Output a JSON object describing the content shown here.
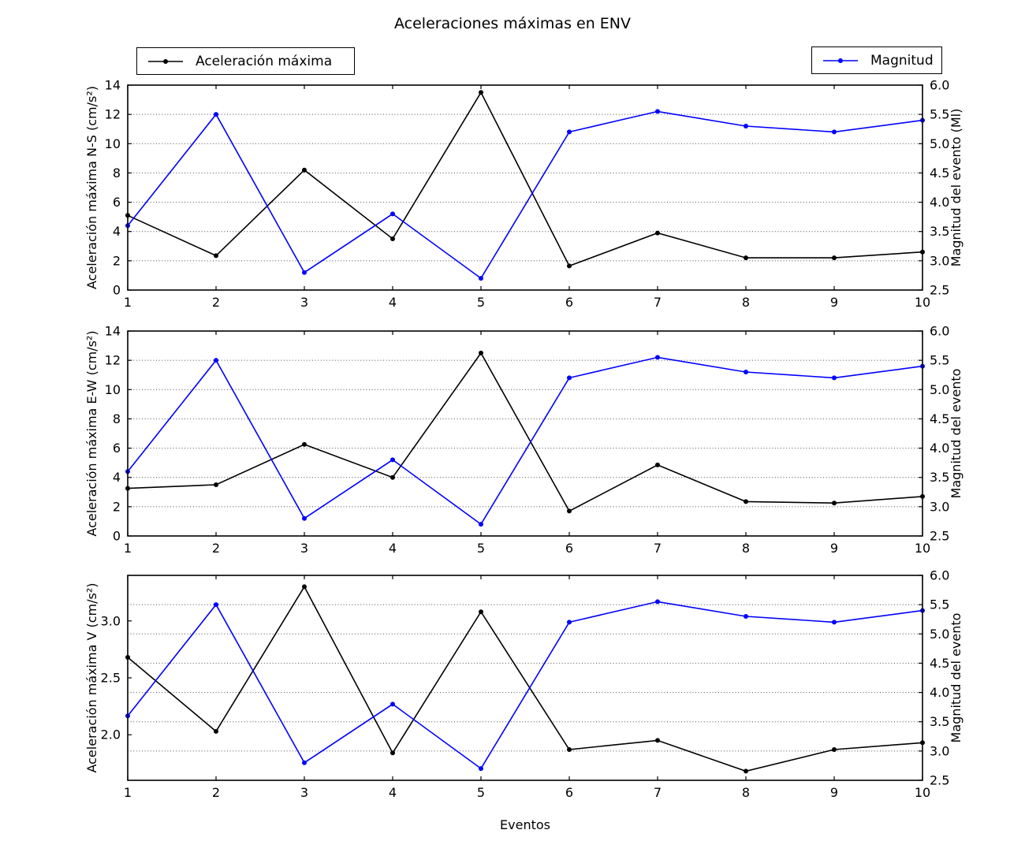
{
  "title": "Aceleraciones máximas en ENV",
  "xlabel": "Eventos",
  "legends": [
    {
      "key": "aceleracion-maxima",
      "label": "Aceleración máxima",
      "color": "#000000"
    },
    {
      "key": "magnitud",
      "label": "Magnitud",
      "color": "#0000ff"
    }
  ],
  "chart_data": [
    {
      "id": "ns",
      "type": "line",
      "x": [
        1,
        2,
        3,
        4,
        5,
        6,
        7,
        8,
        9,
        10
      ],
      "xlim": [
        1,
        10
      ],
      "xtick_labels": [
        "1",
        "2",
        "3",
        "4",
        "5",
        "6",
        "7",
        "8",
        "9",
        "10"
      ],
      "ylabel_left": "Aceleración máxima N-S (cm/s²)",
      "ylabel_right": "Magnitud del evento (Ml)",
      "ylim_left": [
        0,
        14
      ],
      "ylim_right": [
        2.5,
        6.0
      ],
      "yticks_left": {
        "values": [
          0,
          2,
          4,
          6,
          8,
          10,
          12,
          14
        ],
        "labels": [
          "0",
          "2",
          "4",
          "6",
          "8",
          "10",
          "12",
          "14"
        ]
      },
      "yticks_right": {
        "values": [
          2.5,
          3.0,
          3.5,
          4.0,
          4.5,
          5.0,
          5.5,
          6.0
        ],
        "labels": [
          "2.5",
          "3.0",
          "3.5",
          "4.0",
          "4.5",
          "5.0",
          "5.5",
          "6.0"
        ]
      },
      "grid": {
        "axis": "right",
        "values": [
          3.0,
          3.5,
          4.0,
          4.5,
          5.0,
          5.5
        ],
        "style": "dotted"
      },
      "series": [
        {
          "key": "aceleracion-maxima",
          "name": "Aceleración máxima",
          "axis": "left",
          "color": "#000000",
          "marker": "circle",
          "values": [
            5.1,
            2.35,
            8.2,
            3.5,
            13.5,
            1.65,
            3.9,
            2.2,
            2.2,
            2.6
          ]
        },
        {
          "key": "magnitud",
          "name": "Magnitud",
          "axis": "right",
          "color": "#0000ff",
          "marker": "circle",
          "values": [
            3.6,
            5.5,
            2.8,
            3.8,
            2.7,
            5.2,
            5.55,
            5.3,
            5.2,
            5.4
          ]
        }
      ]
    },
    {
      "id": "ew",
      "type": "line",
      "x": [
        1,
        2,
        3,
        4,
        5,
        6,
        7,
        8,
        9,
        10
      ],
      "xlim": [
        1,
        10
      ],
      "xtick_labels": [
        "1",
        "2",
        "3",
        "4",
        "5",
        "6",
        "7",
        "8",
        "9",
        "10"
      ],
      "ylabel_left": "Aceleración máxima E-W (cm/s²)",
      "ylabel_right": "Magnitud del evento",
      "ylim_left": [
        0,
        14
      ],
      "ylim_right": [
        2.5,
        6.0
      ],
      "yticks_left": {
        "values": [
          0,
          2,
          4,
          6,
          8,
          10,
          12,
          14
        ],
        "labels": [
          "0",
          "2",
          "4",
          "6",
          "8",
          "10",
          "12",
          "14"
        ]
      },
      "yticks_right": {
        "values": [
          2.5,
          3.0,
          3.5,
          4.0,
          4.5,
          5.0,
          5.5,
          6.0
        ],
        "labels": [
          "2.5",
          "3.0",
          "3.5",
          "4.0",
          "4.5",
          "5.0",
          "5.5",
          "6.0"
        ]
      },
      "grid": {
        "axis": "right",
        "values": [
          3.0,
          3.5,
          4.0,
          4.5,
          5.0,
          5.5
        ],
        "style": "dotted"
      },
      "series": [
        {
          "key": "aceleracion-maxima",
          "name": "Aceleración máxima",
          "axis": "left",
          "color": "#000000",
          "marker": "circle",
          "values": [
            3.25,
            3.5,
            6.25,
            4.0,
            12.5,
            1.7,
            4.85,
            2.35,
            2.25,
            2.7
          ]
        },
        {
          "key": "magnitud",
          "name": "Magnitud",
          "axis": "right",
          "color": "#0000ff",
          "marker": "circle",
          "values": [
            3.6,
            5.5,
            2.8,
            3.8,
            2.7,
            5.2,
            5.55,
            5.3,
            5.2,
            5.4
          ]
        }
      ]
    },
    {
      "id": "v",
      "type": "line",
      "x": [
        1,
        2,
        3,
        4,
        5,
        6,
        7,
        8,
        9,
        10
      ],
      "xlim": [
        1,
        10
      ],
      "xtick_labels": [
        "1",
        "2",
        "3",
        "4",
        "5",
        "6",
        "7",
        "8",
        "9",
        "10"
      ],
      "ylabel_left": "Aceleración máxima V (cm/s²)",
      "ylabel_right": "Magnitud del evento",
      "ylim_left": [
        1.6,
        3.4
      ],
      "ylim_right": [
        2.5,
        6.0
      ],
      "yticks_left": {
        "values": [
          2.0,
          2.5,
          3.0
        ],
        "labels": [
          "2.0",
          "2.5",
          "3.0"
        ]
      },
      "yticks_right": {
        "values": [
          2.5,
          3.0,
          3.5,
          4.0,
          4.5,
          5.0,
          5.5,
          6.0
        ],
        "labels": [
          "2.5",
          "3.0",
          "3.5",
          "4.0",
          "4.5",
          "5.0",
          "5.5",
          "6.0"
        ]
      },
      "grid": {
        "axis": "right",
        "values": [
          3.0,
          3.5,
          4.0,
          4.5,
          5.0,
          5.5
        ],
        "style": "dotted"
      },
      "series": [
        {
          "key": "aceleracion-maxima",
          "name": "Aceleración máxima",
          "axis": "left",
          "color": "#000000",
          "marker": "circle",
          "values": [
            2.68,
            2.03,
            3.3,
            1.84,
            3.08,
            1.87,
            1.95,
            1.68,
            1.87,
            1.93
          ]
        },
        {
          "key": "magnitud",
          "name": "Magnitud",
          "axis": "right",
          "color": "#0000ff",
          "marker": "circle",
          "values": [
            3.6,
            5.5,
            2.8,
            3.8,
            2.7,
            5.2,
            5.55,
            5.3,
            5.2,
            5.4
          ]
        }
      ]
    }
  ]
}
